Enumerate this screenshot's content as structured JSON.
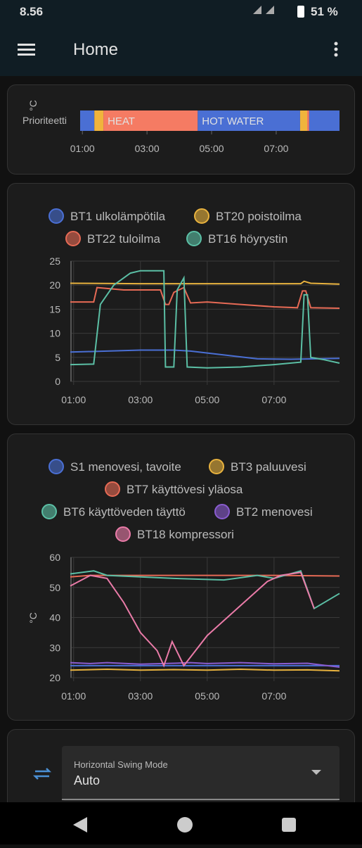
{
  "status_bar": {
    "time": "8.56",
    "battery": "51 %"
  },
  "app_bar": {
    "title": "Home"
  },
  "timeline": {
    "label": "Prioriteetti",
    "xlim": [
      0.93,
      8.96
    ],
    "xticks": [
      {
        "value": 1,
        "label": "01:00"
      },
      {
        "value": 3,
        "label": "03:00"
      },
      {
        "value": 5,
        "label": "05:00"
      },
      {
        "value": 7,
        "label": "07:00"
      }
    ],
    "segments": [
      {
        "start": 0.93,
        "end": 1.37,
        "color": "#4a6fd4"
      },
      {
        "start": 1.37,
        "end": 1.65,
        "color": "#f0b43c"
      },
      {
        "start": 1.65,
        "end": 4.57,
        "color": "#f57b63",
        "label": "HEAT"
      },
      {
        "start": 4.57,
        "end": 7.74,
        "color": "#4a6fd4",
        "label": "HOT WATER"
      },
      {
        "start": 7.74,
        "end": 7.96,
        "color": "#f0b43c"
      },
      {
        "start": 7.96,
        "end": 8.02,
        "color": "#f57b63"
      },
      {
        "start": 8.02,
        "end": 8.96,
        "color": "#4a6fd4"
      }
    ]
  },
  "chart_data": [
    {
      "type": "line",
      "ylabel": "°C",
      "xlim": [
        0.9,
        8.96
      ],
      "ylim": [
        0,
        25
      ],
      "yticks": [
        0,
        5,
        10,
        15,
        20,
        25
      ],
      "xticks": [
        {
          "value": 1,
          "label": "01:00"
        },
        {
          "value": 3,
          "label": "03:00"
        },
        {
          "value": 5,
          "label": "05:00"
        },
        {
          "value": 7,
          "label": "07:00"
        }
      ],
      "grid": true,
      "series": [
        {
          "name": "BT1 ulkolämpötila",
          "color": "#4a6fd4",
          "x": [
            0.9,
            2,
            3,
            4,
            4.5,
            5.5,
            6.5,
            7.5,
            8.96
          ],
          "values": [
            6.1,
            6.3,
            6.5,
            6.5,
            6.3,
            5.5,
            4.7,
            4.6,
            4.8
          ]
        },
        {
          "name": "BT20 poistoilma",
          "color": "#e8b23e",
          "x": [
            0.9,
            3,
            5,
            7,
            7.8,
            7.9,
            8.1,
            8.96
          ],
          "values": [
            20.4,
            20.3,
            20.3,
            20.3,
            20.3,
            20.8,
            20.4,
            20.2
          ]
        },
        {
          "name": "BT22 tuloilma",
          "color": "#e66a55",
          "x": [
            0.9,
            1.6,
            1.7,
            2.5,
            3.6,
            3.75,
            3.85,
            4.0,
            4.3,
            4.5,
            5,
            6,
            7,
            7.7,
            7.85,
            7.95,
            8.1,
            8.96
          ],
          "values": [
            16.5,
            16.5,
            19.5,
            19,
            19,
            16,
            16,
            18.5,
            19.5,
            16.3,
            16.5,
            16,
            15.5,
            15.3,
            18.8,
            18.8,
            15.3,
            15.2
          ]
        },
        {
          "name": "BT16 höyrystin",
          "color": "#5bbfa5",
          "x": [
            0.9,
            1.6,
            1.8,
            2.2,
            2.7,
            3.0,
            3.7,
            3.75,
            4.0,
            4.1,
            4.3,
            4.4,
            5,
            6,
            7,
            7.8,
            7.9,
            8.0,
            8.1,
            8.5,
            8.96
          ],
          "values": [
            3.5,
            3.6,
            16,
            20,
            22.5,
            23,
            23,
            3,
            3,
            19,
            21.5,
            3,
            2.8,
            3,
            3.5,
            4,
            18,
            18,
            5,
            4.5,
            3.8
          ]
        }
      ]
    },
    {
      "type": "line",
      "ylabel": "°C",
      "xlim": [
        0.9,
        8.96
      ],
      "ylim": [
        20,
        60
      ],
      "yticks": [
        20,
        30,
        40,
        50,
        60
      ],
      "xticks": [
        {
          "value": 1,
          "label": "01:00"
        },
        {
          "value": 3,
          "label": "03:00"
        },
        {
          "value": 5,
          "label": "05:00"
        },
        {
          "value": 7,
          "label": "07:00"
        }
      ],
      "grid": true,
      "series": [
        {
          "name": "S1 menovesi, tavoite",
          "color": "#4a6fd4",
          "x": [
            0.9,
            3,
            5,
            7,
            8.96
          ],
          "values": [
            24,
            24,
            24,
            24,
            24
          ]
        },
        {
          "name": "BT3 paluuvesi",
          "color": "#e8b23e",
          "x": [
            0.9,
            2,
            3,
            4,
            5,
            6,
            7,
            8,
            8.96
          ],
          "values": [
            22.5,
            22.8,
            22.5,
            22.7,
            22.5,
            22.8,
            22.5,
            22.6,
            22.3
          ]
        },
        {
          "name": "BT7 käyttövesi yläosa",
          "color": "#e66a55",
          "x": [
            0.9,
            1.5,
            3,
            5,
            7,
            8.96
          ],
          "values": [
            53.5,
            54,
            54,
            54,
            54,
            53.8
          ]
        },
        {
          "name": "BT6 käyttöveden täyttö",
          "color": "#5bbfa5",
          "x": [
            0.9,
            1.6,
            2,
            4,
            5.5,
            6.5,
            7,
            7.8,
            8.2,
            8.96
          ],
          "values": [
            54.5,
            55.5,
            54,
            53,
            52.5,
            54,
            53,
            55.5,
            43,
            48
          ]
        },
        {
          "name": "BT2 menovesi",
          "color": "#8a5cd0",
          "x": [
            0.9,
            1.5,
            2,
            3,
            4,
            4.5,
            5,
            6,
            7,
            8,
            8.96
          ],
          "values": [
            25,
            24.7,
            25,
            24.5,
            24.8,
            25,
            24.7,
            25,
            24.6,
            24.8,
            23.5
          ]
        },
        {
          "name": "BT18 kompressori",
          "color": "#ea7ba8",
          "x": [
            0.9,
            1.5,
            2,
            2.5,
            3,
            3.5,
            3.7,
            3.95,
            4.3,
            5,
            6,
            6.8,
            7.2,
            7.8,
            8.2
          ],
          "values": [
            50.5,
            54,
            53,
            45,
            35,
            29,
            24,
            32,
            24,
            34,
            44,
            52,
            54,
            55,
            43
          ]
        }
      ]
    }
  ],
  "control": {
    "label": "Horizontal Swing Mode",
    "value": "Auto"
  }
}
